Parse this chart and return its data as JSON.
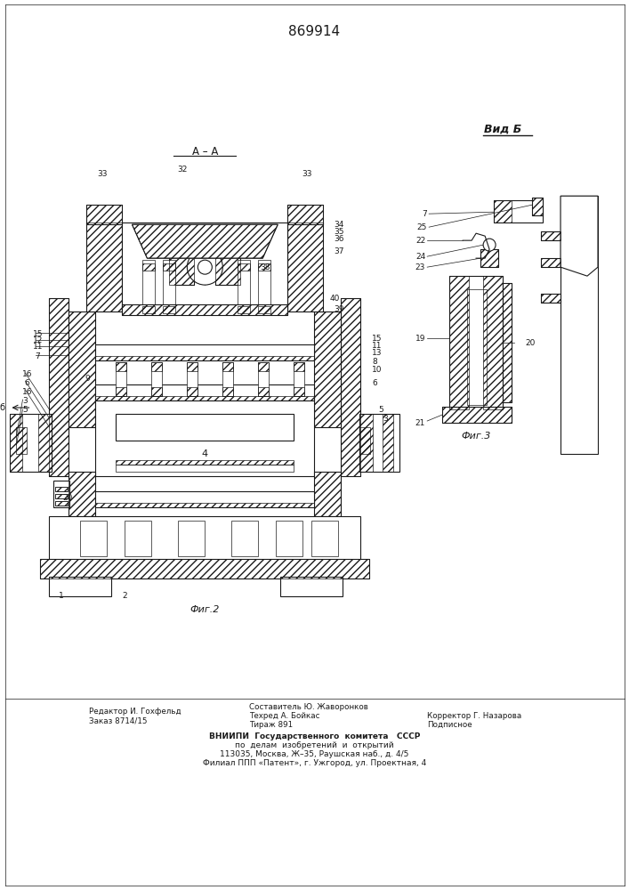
{
  "patent_number": "869914",
  "fig2_label": "Фиг.2",
  "fig3_label": "Фиг.3",
  "section_label": "А – А",
  "view_label": "Вид Б",
  "bg_color": "#ffffff",
  "line_color": "#1a1a1a"
}
